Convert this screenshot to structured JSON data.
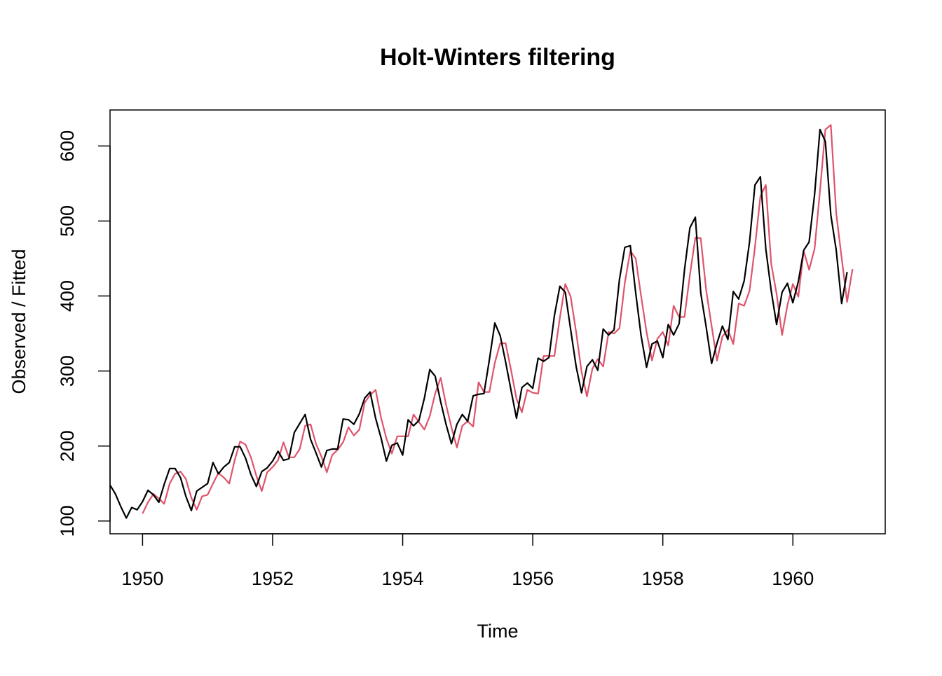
{
  "chart_data": {
    "type": "line",
    "title": "Holt-Winters filtering",
    "xlabel": "Time",
    "ylabel": "Observed / Fitted",
    "xlim": [
      1949.5,
      1961.42
    ],
    "ylim": [
      83,
      648
    ],
    "x_ticks": [
      {
        "value": 1950,
        "label": "1950"
      },
      {
        "value": 1952,
        "label": "1952"
      },
      {
        "value": 1954,
        "label": "1954"
      },
      {
        "value": 1956,
        "label": "1956"
      },
      {
        "value": 1958,
        "label": "1958"
      },
      {
        "value": 1960,
        "label": "1960"
      }
    ],
    "y_ticks": [
      {
        "value": 100,
        "label": "100"
      },
      {
        "value": 200,
        "label": "200"
      },
      {
        "value": 300,
        "label": "300"
      },
      {
        "value": 400,
        "label": "400"
      },
      {
        "value": 500,
        "label": "500"
      },
      {
        "value": 600,
        "label": "600"
      }
    ],
    "grid": false,
    "legend": null,
    "series": [
      {
        "color": "#000000",
        "x_start": 1949.5,
        "x_step": 0.08333333,
        "values": [
          148,
          136,
          119,
          104,
          118,
          115,
          126,
          141,
          135,
          125,
          149,
          170,
          170,
          158,
          133,
          114,
          140,
          145,
          150,
          178,
          163,
          172,
          178,
          199,
          199,
          184,
          162,
          146,
          166,
          171,
          180,
          193,
          181,
          183,
          218,
          230,
          242,
          209,
          191,
          172,
          194,
          196,
          196,
          236,
          235,
          229,
          243,
          264,
          272,
          237,
          211,
          180,
          201,
          204,
          188,
          235,
          227,
          234,
          264,
          302,
          293,
          259,
          229,
          203,
          229,
          242,
          233,
          267,
          269,
          270,
          315,
          364,
          347,
          312,
          274,
          237,
          278,
          284,
          277,
          317,
          313,
          318,
          374,
          413,
          405,
          355,
          306,
          271,
          306,
          315,
          301,
          356,
          348,
          355,
          422,
          465,
          467,
          404,
          347,
          305,
          336,
          340,
          318,
          362,
          348,
          363,
          435,
          491,
          505,
          404,
          359,
          310,
          337,
          360,
          342,
          406,
          396,
          420,
          472,
          548,
          559,
          463,
          407,
          362,
          405,
          417,
          391,
          419,
          461,
          472,
          535,
          622,
          606,
          508,
          461,
          390,
          432
        ]
      },
      {
        "color": "#df536b",
        "x_start": 1950.0,
        "x_step": 0.08333333,
        "values": [
          110,
          125,
          136,
          130,
          123,
          150,
          163,
          166,
          156,
          131,
          115,
          133,
          135,
          150,
          164,
          158,
          150,
          181,
          206,
          202,
          185,
          160,
          140,
          165,
          172,
          181,
          205,
          185,
          185,
          196,
          227,
          229,
          203,
          186,
          165,
          188,
          195,
          205,
          225,
          214,
          222,
          258,
          268,
          275,
          238,
          210,
          190,
          213,
          213,
          213,
          242,
          232,
          222,
          240,
          270,
          291,
          255,
          225,
          198,
          227,
          233,
          226,
          285,
          272,
          272,
          311,
          337,
          337,
          301,
          263,
          245,
          275,
          271,
          270,
          320,
          320,
          320,
          371,
          416,
          399,
          352,
          299,
          266,
          303,
          316,
          306,
          352,
          350,
          357,
          418,
          460,
          450,
          400,
          352,
          314,
          343,
          352,
          334,
          387,
          372,
          372,
          428,
          478,
          477,
          408,
          360,
          314,
          346,
          355,
          336,
          390,
          387,
          407,
          465,
          533,
          548,
          443,
          403,
          348,
          388,
          416,
          399,
          460,
          435,
          463,
          540,
          622,
          628,
          510,
          451,
          392,
          436
        ]
      }
    ]
  }
}
